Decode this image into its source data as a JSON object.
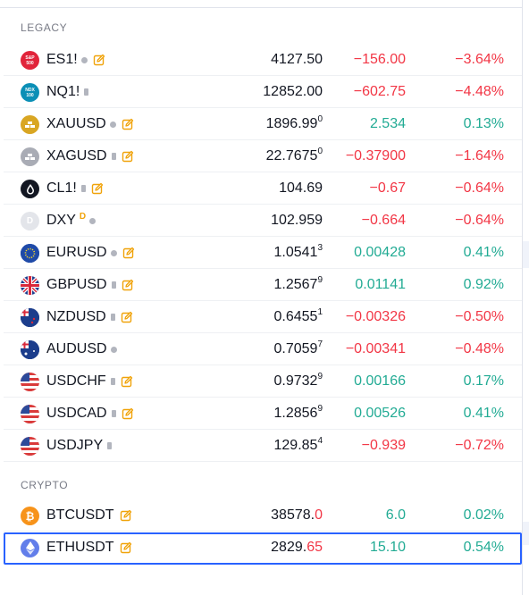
{
  "sections": {
    "legacy": "LEGACY",
    "crypto": "CRYPTO"
  },
  "rows": [
    {
      "symbol": "ES1!",
      "last_main": "4127.50",
      "last_sup": "",
      "change": "−156.00",
      "change_pct": "−3.64%",
      "dir": "neg",
      "icon": "sp500-icon",
      "icon_text": "S&P 500",
      "icon_color": "#e1243a",
      "marker": "dot",
      "edit": true
    },
    {
      "symbol": "NQ1!",
      "last_main": "12852.00",
      "last_sup": "",
      "change": "−602.75",
      "change_pct": "−4.48%",
      "dir": "neg",
      "icon": "nasdaq-icon",
      "icon_text": "NDX 100",
      "icon_color": "#0b8fb6",
      "marker": "square",
      "edit": false
    },
    {
      "symbol": "XAUUSD",
      "last_main": "1896.99",
      "last_sup": "0",
      "change": "2.534",
      "change_pct": "0.13%",
      "dir": "pos",
      "icon": "gold-bars-icon",
      "icon_text": "",
      "icon_color": "#d9a623",
      "marker": "dot",
      "edit": true
    },
    {
      "symbol": "XAGUSD",
      "last_main": "22.7675",
      "last_sup": "0",
      "change": "−0.37900",
      "change_pct": "−1.64%",
      "dir": "neg",
      "icon": "silver-bars-icon",
      "icon_text": "",
      "icon_color": "#a9acb5",
      "marker": "square",
      "edit": true
    },
    {
      "symbol": "CL1!",
      "last_main": "104.69",
      "last_sup": "",
      "change": "−0.67",
      "change_pct": "−0.64%",
      "dir": "neg",
      "icon": "oil-drop-icon",
      "icon_text": "",
      "icon_color": "#131722",
      "marker": "square",
      "edit": true
    },
    {
      "symbol": "DXY",
      "last_main": "102.959",
      "last_sup": "",
      "change": "−0.664",
      "change_pct": "−0.64%",
      "dir": "neg",
      "icon": "dollar-index-icon",
      "icon_text": "D",
      "icon_color": "#e3e5ea",
      "marker": "dot",
      "edit": false,
      "dmark": "D"
    },
    {
      "symbol": "EURUSD",
      "last_main": "1.0541",
      "last_sup": "3",
      "change": "0.00428",
      "change_pct": "0.41%",
      "dir": "pos",
      "icon": "eu-flag-icon",
      "icon_text": "",
      "icon_color": "#1f4aa8",
      "marker": "dot",
      "edit": true
    },
    {
      "symbol": "GBPUSD",
      "last_main": "1.2567",
      "last_sup": "9",
      "change": "0.01141",
      "change_pct": "0.92%",
      "dir": "pos",
      "icon": "uk-flag-icon",
      "icon_text": "",
      "icon_color": "#1f3f8f",
      "marker": "square",
      "edit": true
    },
    {
      "symbol": "NZDUSD",
      "last_main": "0.6455",
      "last_sup": "1",
      "change": "−0.00326",
      "change_pct": "−0.50%",
      "dir": "neg",
      "icon": "nz-flag-icon",
      "icon_text": "",
      "icon_color": "#1c3d8c",
      "marker": "square",
      "edit": true
    },
    {
      "symbol": "AUDUSD",
      "last_main": "0.7059",
      "last_sup": "7",
      "change": "−0.00341",
      "change_pct": "−0.48%",
      "dir": "neg",
      "icon": "au-flag-icon",
      "icon_text": "",
      "icon_color": "#1c3d8c",
      "marker": "dot",
      "edit": false
    },
    {
      "symbol": "USDCHF",
      "last_main": "0.9732",
      "last_sup": "9",
      "change": "0.00166",
      "change_pct": "0.17%",
      "dir": "pos",
      "icon": "us-ch-flag-icon",
      "icon_text": "",
      "icon_color": "#d93a3a",
      "marker": "square",
      "edit": true
    },
    {
      "symbol": "USDCAD",
      "last_main": "1.2856",
      "last_sup": "9",
      "change": "0.00526",
      "change_pct": "0.41%",
      "dir": "pos",
      "icon": "us-ca-flag-icon",
      "icon_text": "",
      "icon_color": "#d93a3a",
      "marker": "square",
      "edit": true
    },
    {
      "symbol": "USDJPY",
      "last_main": "129.85",
      "last_sup": "4",
      "change": "−0.939",
      "change_pct": "−0.72%",
      "dir": "neg",
      "icon": "us-jp-flag-icon",
      "icon_text": "",
      "icon_color": "#d93a3a",
      "marker": "square",
      "edit": false
    }
  ],
  "crypto_rows": [
    {
      "symbol": "BTCUSDT",
      "last_main": "38578.",
      "last_red": "0",
      "change": "6.0",
      "change_pct": "0.02%",
      "dir": "pos",
      "icon": "bitcoin-icon",
      "icon_color": "#f7931a",
      "edit": true
    },
    {
      "symbol": "ETHUSDT",
      "last_main": "2829.",
      "last_red": "65",
      "change": "15.10",
      "change_pct": "0.54%",
      "dir": "pos",
      "icon": "ethereum-icon",
      "icon_color": "#627eea",
      "edit": true,
      "selected": true
    }
  ],
  "colors": {
    "negative": "#f23645",
    "positive": "#22ab94",
    "accent": "#2962ff",
    "edit": "#f0a30a"
  }
}
